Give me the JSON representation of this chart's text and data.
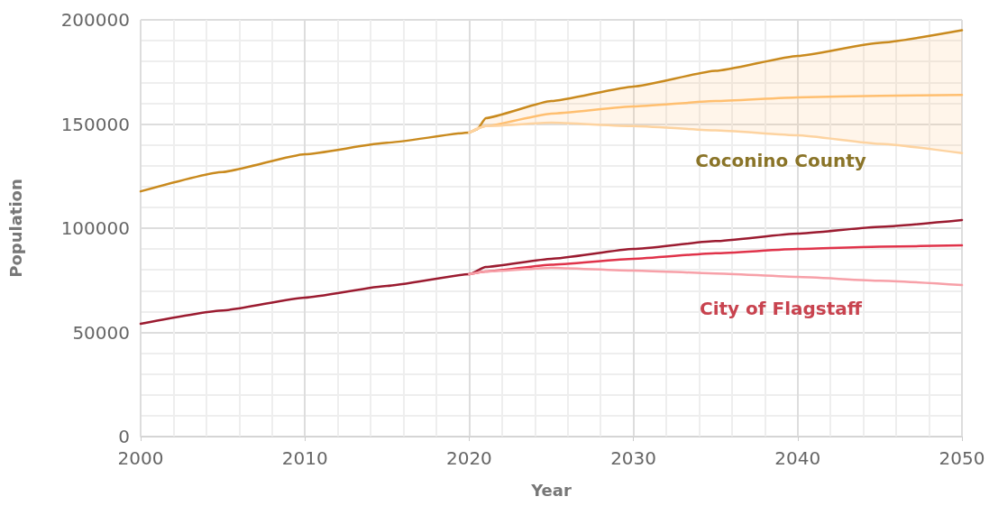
{
  "chart_data": {
    "type": "line",
    "xlabel": "Year",
    "ylabel": "Population",
    "xlim": [
      2000,
      2050
    ],
    "ylim": [
      0,
      200000
    ],
    "xticks": [
      2000,
      2010,
      2020,
      2030,
      2040,
      2050
    ],
    "yticks": [
      0,
      50000,
      100000,
      150000,
      200000
    ],
    "grid": true,
    "marker": "none",
    "line_style": "solid",
    "series": [
      {
        "color": "#c98a1e",
        "x": [
          2000,
          2005,
          2010,
          2015,
          2020,
          2020.5,
          2021,
          2025,
          2030,
          2035,
          2040,
          2045,
          2050
        ],
        "values": [
          117700,
          127000,
          135500,
          141000,
          145900,
          147500,
          152800,
          161000,
          168000,
          175500,
          182700,
          189000,
          195000
        ]
      },
      {
        "color": "#ffbf70",
        "x": [
          2020,
          2021,
          2025,
          2030,
          2035,
          2040,
          2045,
          2050
        ],
        "values": [
          145900,
          149000,
          155000,
          158400,
          161000,
          162800,
          163500,
          164000
        ],
        "lower": [
          145900,
          149000,
          150600,
          149000,
          147000,
          144600,
          140500,
          136000
        ],
        "upper": [
          145900,
          152800,
          161000,
          168000,
          175500,
          182700,
          189000,
          195000
        ]
      },
      {
        "color": "#fdd3a0",
        "x": [
          2020,
          2021,
          2025,
          2030,
          2035,
          2040,
          2045,
          2050
        ],
        "values": [
          145900,
          149000,
          150600,
          149000,
          147000,
          144600,
          140500,
          136000
        ]
      },
      {
        "color": "#9b1b30",
        "x": [
          2000,
          2005,
          2010,
          2015,
          2020,
          2021,
          2025,
          2030,
          2035,
          2040,
          2045,
          2050
        ],
        "values": [
          54100,
          60500,
          66700,
          72300,
          77900,
          81400,
          85300,
          90000,
          93800,
          97400,
          100700,
          103900
        ]
      },
      {
        "color": "#e0334a",
        "x": [
          2020,
          2021,
          2025,
          2030,
          2035,
          2040,
          2045,
          2050
        ],
        "values": [
          77900,
          79200,
          82500,
          85300,
          88000,
          90000,
          91100,
          91800
        ]
      },
      {
        "color": "#f7a0a8",
        "x": [
          2020,
          2021,
          2025,
          2030,
          2035,
          2040,
          2045,
          2050
        ],
        "values": [
          77900,
          79200,
          81000,
          79700,
          78300,
          76600,
          74800,
          72700
        ]
      }
    ],
    "annotations": [
      "Coconino County",
      "City of Flagstaff"
    ]
  }
}
